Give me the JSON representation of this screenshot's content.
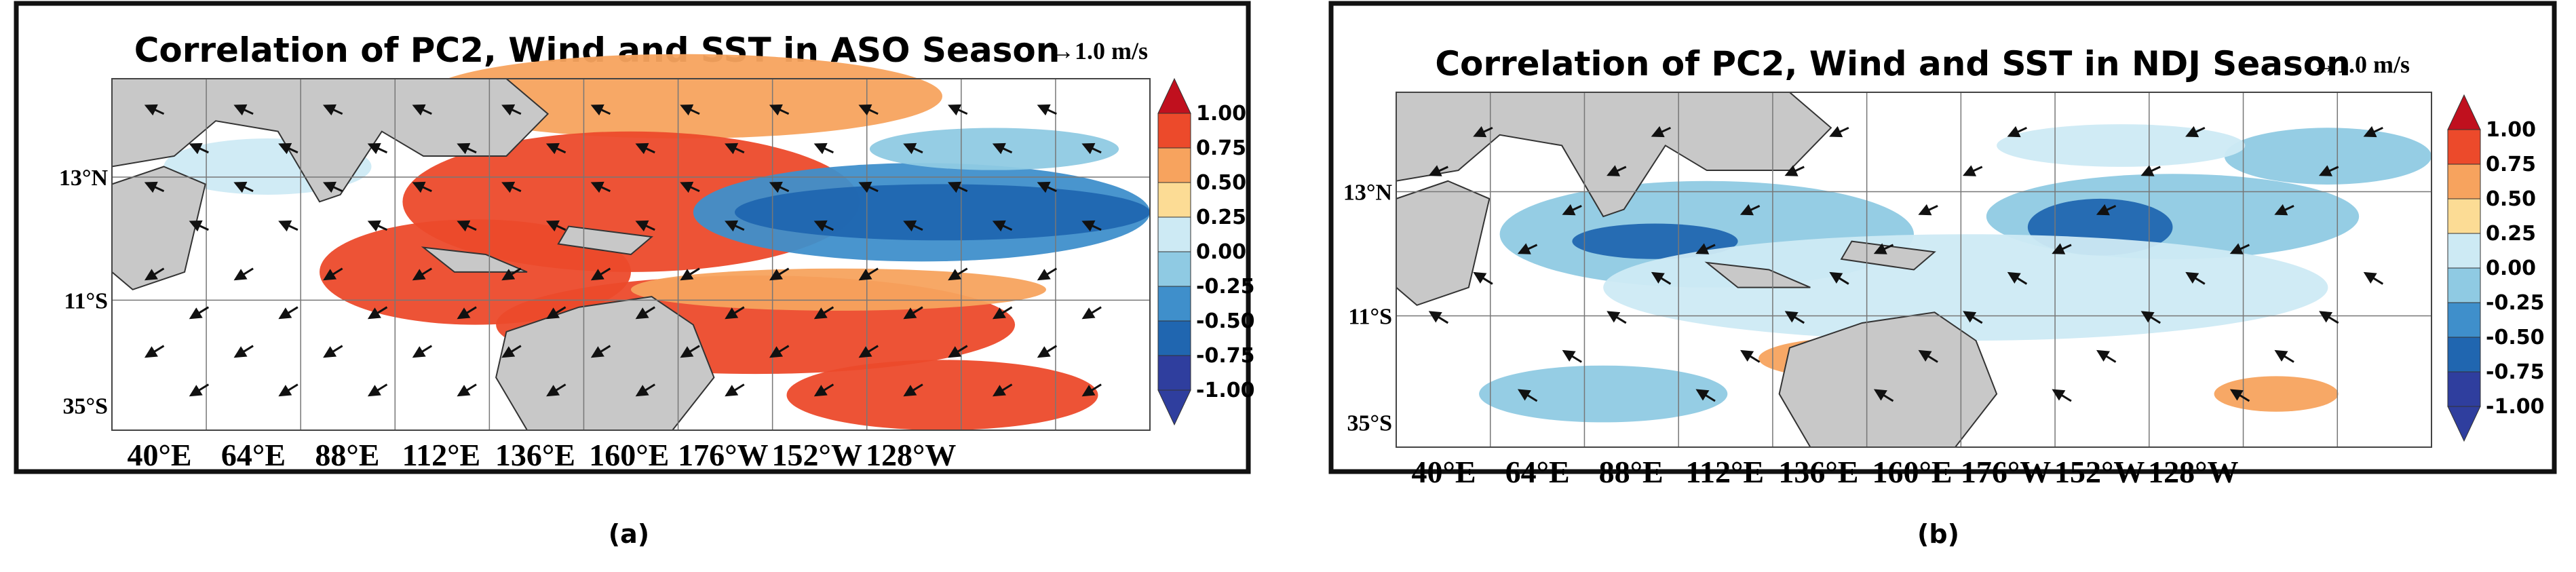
{
  "panels": [
    {
      "title": "Correlation of PC2, Wind and SST in ASO Season",
      "reference_vector": "→1.0 m/s",
      "lat_labels": [
        "13°N",
        "11°S",
        "35°S"
      ],
      "lon_labels": [
        "40°E",
        "64°E",
        "88°E",
        "112°E",
        "136°E",
        "160°E",
        "176°W",
        "152°W",
        "128°W"
      ],
      "colorbar": {
        "labels": [
          "1.00",
          "0.75",
          "0.50",
          "0.25",
          "0.00",
          "-0.25",
          "-0.50",
          "-0.75",
          "-1.00"
        ],
        "colors": [
          "#c0101e",
          "#ec4a2b",
          "#f7a35e",
          "#fcdc95",
          "#cdeaf4",
          "#8fcae3",
          "#3f8fcb",
          "#2066b0",
          "#2f3e9e"
        ]
      },
      "caption": "(a)"
    },
    {
      "title": "Correlation of PC2, Wind and SST in NDJ Season",
      "reference_vector": "→1.0 m/s",
      "lat_labels": [
        "13°N",
        "11°S",
        "35°S"
      ],
      "lon_labels": [
        "40°E",
        "64°E",
        "88°E",
        "112°E",
        "136°E",
        "160°E",
        "176°W",
        "152°W",
        "128°W"
      ],
      "colorbar": {
        "labels": [
          "1.00",
          "0.75",
          "0.50",
          "0.25",
          "0.00",
          "-0.25",
          "-0.50",
          "-0.75",
          "-1.00"
        ],
        "colors": [
          "#c0101e",
          "#ec4a2b",
          "#f7a35e",
          "#fcdc95",
          "#cdeaf4",
          "#8fcae3",
          "#3f8fcb",
          "#2066b0",
          "#2f3e9e"
        ]
      },
      "caption": "(b)"
    }
  ]
}
